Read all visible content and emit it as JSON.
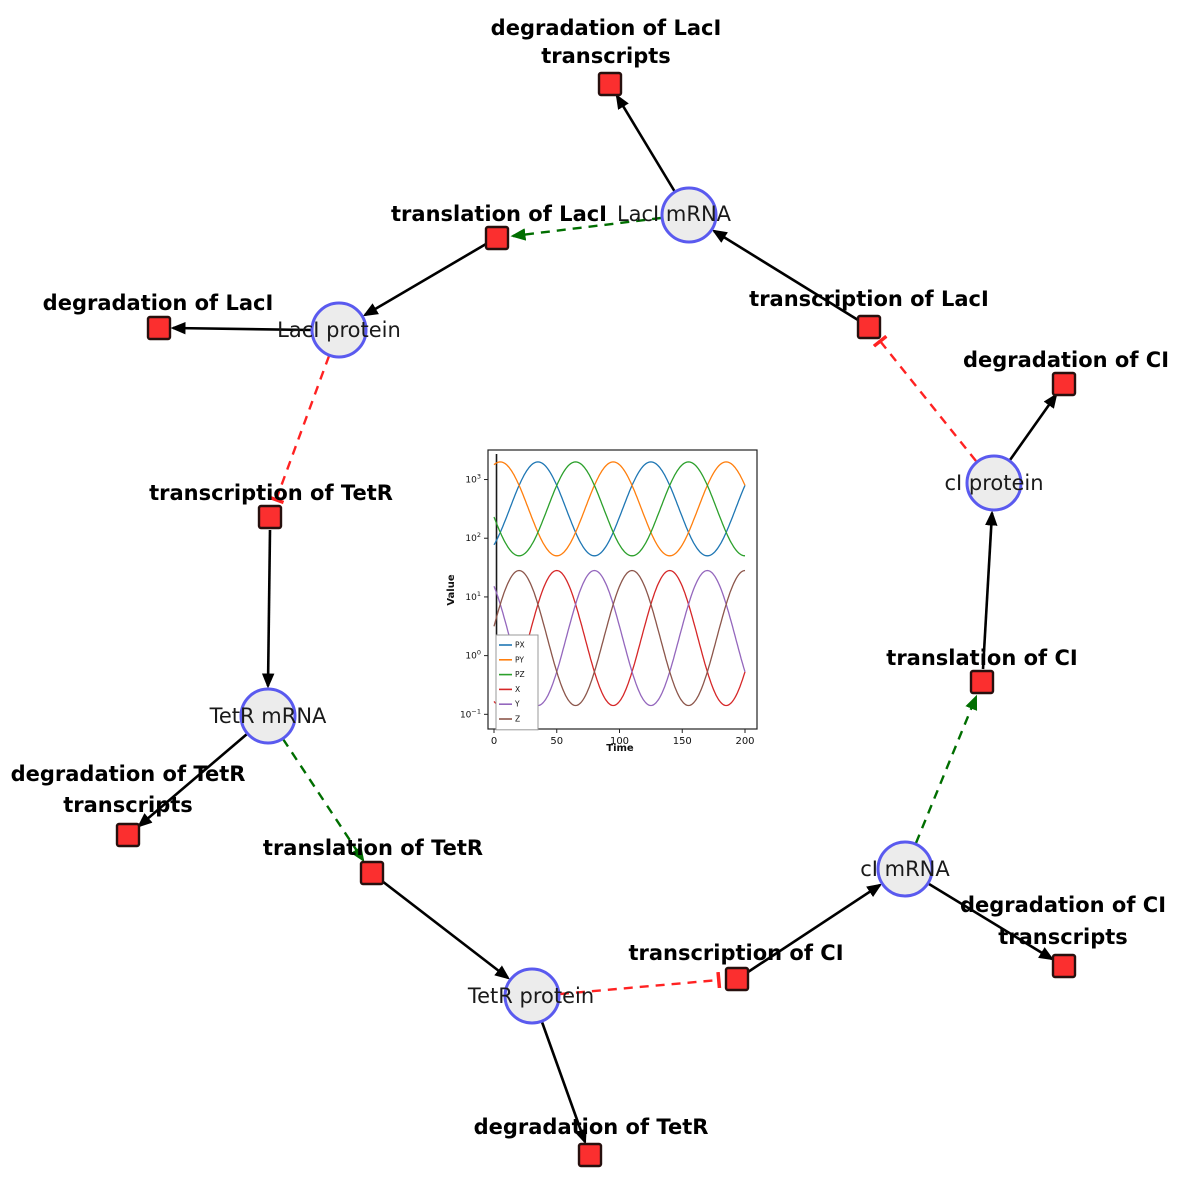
{
  "diagram": {
    "species": [
      {
        "label": "LacI mRNA"
      },
      {
        "label": "LacI protein"
      },
      {
        "label": "TetR mRNA"
      },
      {
        "label": "TetR protein"
      },
      {
        "label": "cI mRNA"
      },
      {
        "label": "cI protein"
      }
    ],
    "reactions": [
      {
        "label": "degradation of LacI transcripts",
        "lines": [
          "degradation of LacI",
          "transcripts"
        ]
      },
      {
        "label": "translation of LacI",
        "lines": [
          "translation of LacI"
        ]
      },
      {
        "label": "degradation of LacI",
        "lines": [
          "degradation of LacI"
        ]
      },
      {
        "label": "transcription of LacI",
        "lines": [
          "transcription of LacI"
        ]
      },
      {
        "label": "degradation of CI",
        "lines": [
          "degradation of CI"
        ]
      },
      {
        "label": "transcription of TetR",
        "lines": [
          "transcription of TetR"
        ]
      },
      {
        "label": "translation of CI",
        "lines": [
          "translation of CI"
        ]
      },
      {
        "label": "degradation of TetR transcripts",
        "lines": [
          "degradation of TetR",
          "transcripts"
        ]
      },
      {
        "label": "translation of TetR",
        "lines": [
          "translation of TetR"
        ]
      },
      {
        "label": "transcription of CI",
        "lines": [
          "transcription of CI"
        ]
      },
      {
        "label": "degradation of CI transcripts",
        "lines": [
          "degradation of CI",
          "transcripts"
        ]
      },
      {
        "label": "degradation of TetR",
        "lines": [
          "degradation of TetR"
        ]
      }
    ],
    "edge_types": {
      "reaction_flow": "solid black arrow",
      "activation": "green dashed arrow",
      "inhibition": "red dashed tee"
    },
    "colors": {
      "species_fill": "#ececec",
      "species_border": "#5a5aef",
      "reaction_fill": "#fb2f2f",
      "reaction_border": "#27100e",
      "edge": "#000000",
      "activation": "#006e00",
      "inhibition": "#ff2222"
    }
  },
  "chart_data": {
    "type": "line",
    "title": "",
    "xlabel": "Time",
    "ylabel": "Value",
    "x_range": [
      0,
      200
    ],
    "x_ticks": [
      0,
      50,
      100,
      150,
      200
    ],
    "y_scale": "log",
    "y_tick_exponents": [
      -1,
      0,
      1,
      2,
      3
    ],
    "ylim": [
      "1e-1.25",
      "1e3.5"
    ],
    "grid": false,
    "legend_position": "lower-left",
    "startup_spike_t": 2,
    "series": [
      {
        "name": "PX",
        "color": "#1f77b4",
        "log10_center": 2.5,
        "log10_amplitude": 0.8,
        "period": 90,
        "peak_time": 35,
        "min": 50,
        "max": 2000
      },
      {
        "name": "PY",
        "color": "#ff7f0e",
        "log10_center": 2.5,
        "log10_amplitude": 0.8,
        "period": 90,
        "peak_time": 95,
        "min": 50,
        "max": 2000
      },
      {
        "name": "PZ",
        "color": "#2ca02c",
        "log10_center": 2.5,
        "log10_amplitude": 0.8,
        "period": 90,
        "peak_time": 65,
        "min": 50,
        "max": 2000
      },
      {
        "name": "X",
        "color": "#d62728",
        "log10_center": 0.3,
        "log10_amplitude": 1.15,
        "period": 90,
        "peak_time": 50,
        "min": 0.14,
        "max": 28
      },
      {
        "name": "Y",
        "color": "#9467bd",
        "log10_center": 0.3,
        "log10_amplitude": 1.15,
        "period": 90,
        "peak_time": 80,
        "min": 0.14,
        "max": 28
      },
      {
        "name": "Z",
        "color": "#8c564b",
        "log10_center": 0.3,
        "log10_amplitude": 1.15,
        "period": 90,
        "peak_time": 110,
        "min": 0.14,
        "max": 28
      }
    ]
  }
}
